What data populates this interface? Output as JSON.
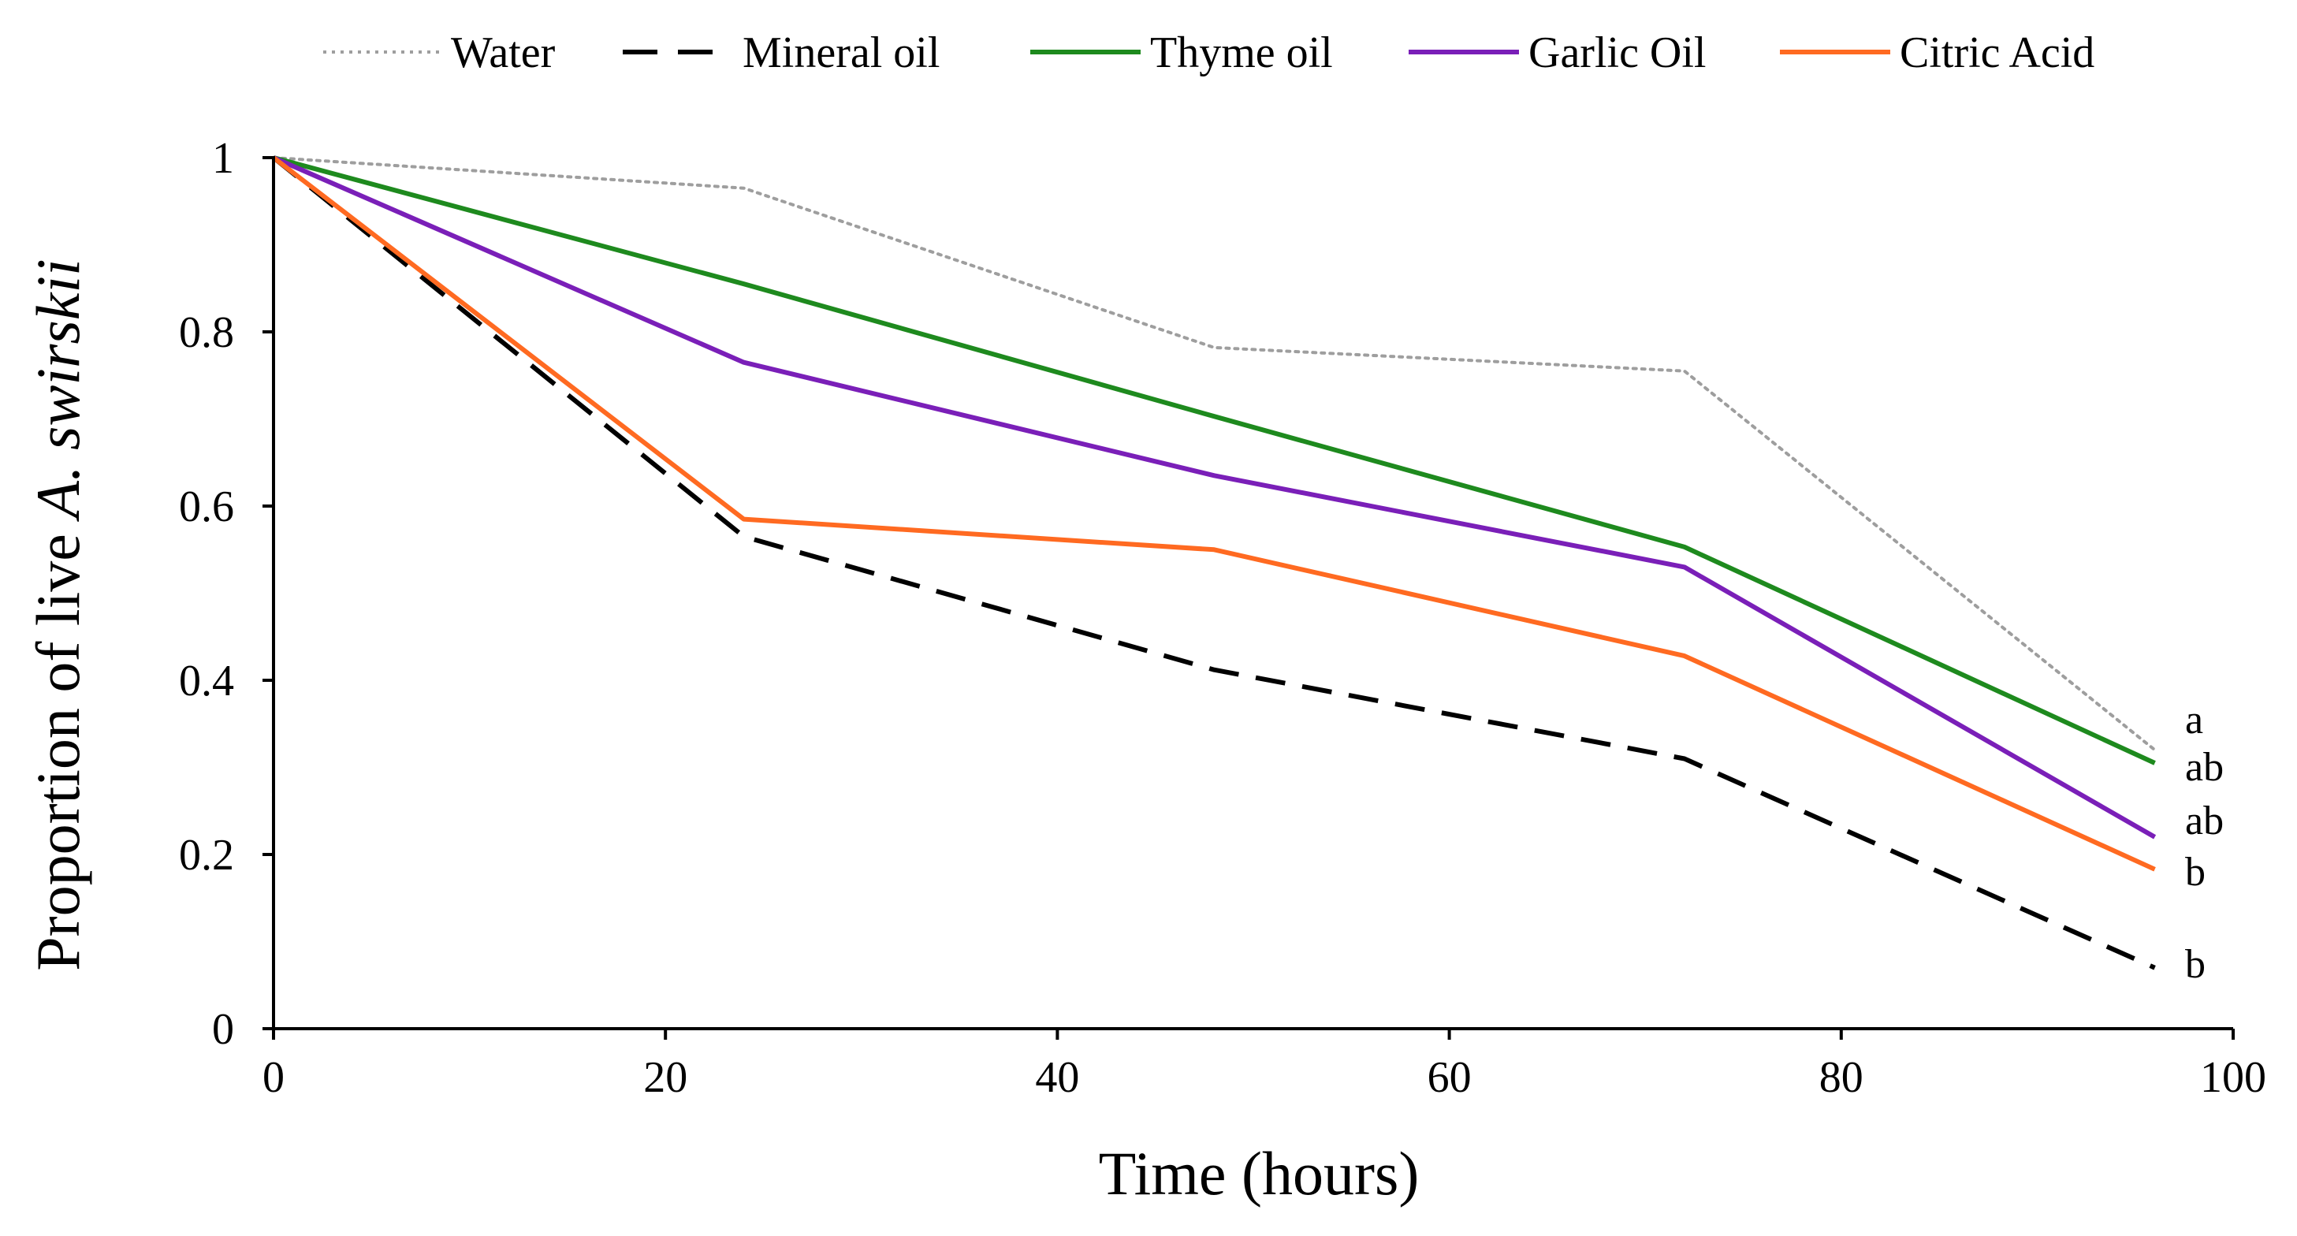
{
  "chart_data": {
    "type": "line",
    "title": "",
    "xlabel": "Time (hours)",
    "ylabel_prefix": "Proportion of live ",
    "ylabel_species": "A. swirskii",
    "xlim": [
      0,
      100
    ],
    "ylim": [
      0,
      1
    ],
    "x_ticks": [
      0,
      20,
      40,
      60,
      80,
      100
    ],
    "x_tick_labels": [
      "0",
      "20",
      "40",
      "60",
      "80",
      "100"
    ],
    "y_ticks": [
      0,
      0.2,
      0.4,
      0.6,
      0.8,
      1
    ],
    "y_tick_labels": [
      "0",
      "0.2",
      "0.4",
      "0.6",
      "0.8",
      "1"
    ],
    "grid": false,
    "legend_position": "top",
    "x": [
      0,
      24,
      48,
      72,
      96
    ],
    "series": [
      {
        "name": "Water",
        "values": [
          1.0,
          0.965,
          0.782,
          0.755,
          0.32
        ],
        "color": "#9e9e9e",
        "style": "dotted",
        "label": "a"
      },
      {
        "name": "Mineral oil",
        "values": [
          1.0,
          0.565,
          0.412,
          0.31,
          0.07
        ],
        "color": "#000000",
        "style": "dashed",
        "label": "b"
      },
      {
        "name": "Thyme oil",
        "values": [
          1.0,
          0.855,
          0.703,
          0.553,
          0.305
        ],
        "color": "#1e8a1e",
        "style": "solid",
        "label": "ab"
      },
      {
        "name": "Garlic Oil",
        "values": [
          1.0,
          0.765,
          0.635,
          0.53,
          0.22
        ],
        "color": "#7a1fb8",
        "style": "solid",
        "label": "ab"
      },
      {
        "name": "Citric Acid",
        "values": [
          1.0,
          0.585,
          0.55,
          0.428,
          0.183
        ],
        "color": "#ff6a21",
        "style": "solid",
        "label": "b"
      }
    ]
  }
}
